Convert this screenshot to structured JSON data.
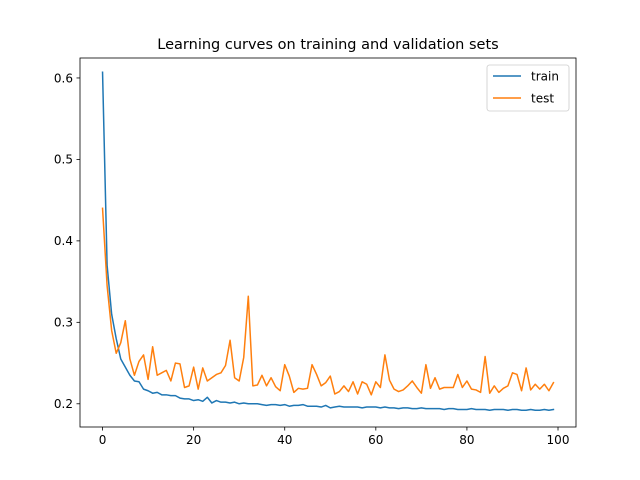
{
  "chart_data": {
    "type": "line",
    "title": "Learning curves on training and validation sets",
    "xlabel": "",
    "ylabel": "",
    "xlim": [
      -4.95,
      103.95
    ],
    "ylim": [
      0.1715,
      0.6245
    ],
    "xticks": [
      0,
      20,
      40,
      60,
      80,
      100
    ],
    "yticks": [
      0.2,
      0.3,
      0.4,
      0.5,
      0.6
    ],
    "xtick_labels": [
      "0",
      "20",
      "40",
      "60",
      "80",
      "100"
    ],
    "ytick_labels": [
      "0.2",
      "0.3",
      "0.4",
      "0.5",
      "0.6"
    ],
    "grid": false,
    "legend_position": "top-right",
    "series": [
      {
        "name": "train",
        "color": "#1f77b4",
        "values": [
          0.607,
          0.37,
          0.31,
          0.28,
          0.255,
          0.245,
          0.235,
          0.228,
          0.227,
          0.218,
          0.216,
          0.213,
          0.214,
          0.211,
          0.211,
          0.21,
          0.21,
          0.207,
          0.206,
          0.206,
          0.204,
          0.205,
          0.203,
          0.208,
          0.201,
          0.204,
          0.202,
          0.202,
          0.201,
          0.202,
          0.2,
          0.201,
          0.2,
          0.2,
          0.2,
          0.199,
          0.198,
          0.199,
          0.199,
          0.198,
          0.199,
          0.197,
          0.198,
          0.198,
          0.199,
          0.197,
          0.197,
          0.197,
          0.196,
          0.198,
          0.195,
          0.196,
          0.197,
          0.196,
          0.196,
          0.196,
          0.196,
          0.195,
          0.196,
          0.196,
          0.196,
          0.195,
          0.196,
          0.195,
          0.195,
          0.194,
          0.195,
          0.195,
          0.194,
          0.194,
          0.195,
          0.194,
          0.194,
          0.194,
          0.194,
          0.193,
          0.194,
          0.194,
          0.193,
          0.193,
          0.193,
          0.194,
          0.193,
          0.193,
          0.193,
          0.192,
          0.193,
          0.193,
          0.193,
          0.192,
          0.193,
          0.193,
          0.192,
          0.192,
          0.193,
          0.192,
          0.192,
          0.193,
          0.192,
          0.193
        ]
      },
      {
        "name": "test",
        "color": "#ff7f0e",
        "values": [
          0.44,
          0.345,
          0.29,
          0.262,
          0.275,
          0.302,
          0.255,
          0.235,
          0.252,
          0.26,
          0.23,
          0.27,
          0.235,
          0.238,
          0.241,
          0.228,
          0.25,
          0.249,
          0.22,
          0.222,
          0.245,
          0.218,
          0.244,
          0.228,
          0.232,
          0.236,
          0.238,
          0.247,
          0.278,
          0.232,
          0.228,
          0.257,
          0.332,
          0.222,
          0.223,
          0.235,
          0.222,
          0.232,
          0.221,
          0.216,
          0.248,
          0.234,
          0.214,
          0.219,
          0.218,
          0.219,
          0.248,
          0.236,
          0.222,
          0.226,
          0.234,
          0.212,
          0.215,
          0.222,
          0.215,
          0.227,
          0.212,
          0.227,
          0.224,
          0.211,
          0.227,
          0.22,
          0.26,
          0.229,
          0.218,
          0.215,
          0.217,
          0.222,
          0.228,
          0.22,
          0.213,
          0.248,
          0.219,
          0.232,
          0.218,
          0.22,
          0.22,
          0.22,
          0.236,
          0.22,
          0.228,
          0.218,
          0.217,
          0.214,
          0.258,
          0.213,
          0.222,
          0.214,
          0.219,
          0.222,
          0.238,
          0.236,
          0.216,
          0.244,
          0.217,
          0.224,
          0.218,
          0.224,
          0.216,
          0.226
        ]
      }
    ]
  }
}
